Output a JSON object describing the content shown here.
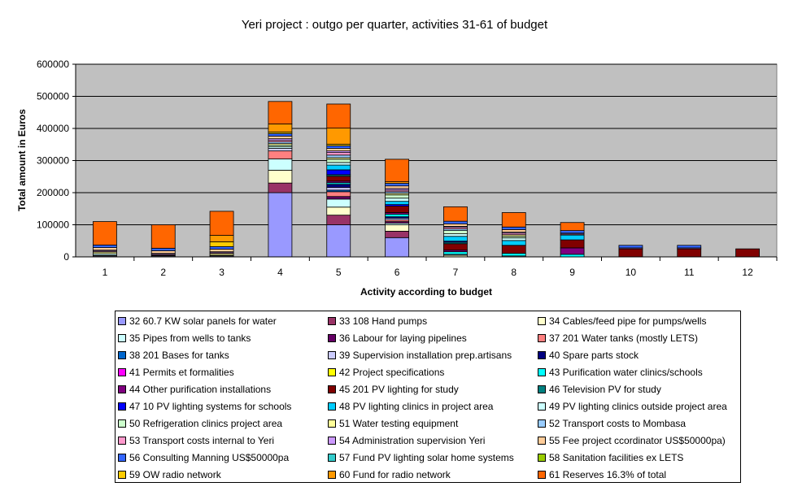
{
  "chart_data": {
    "type": "bar",
    "stacked": true,
    "title": "Yeri project : outgo per quarter, activities 31-61 of budget",
    "xlabel": "Activity according to budget",
    "ylabel": "Total amount in Euros",
    "ylim": [
      0,
      600000
    ],
    "yticks": [
      "0",
      "100000",
      "200000",
      "300000",
      "400000",
      "500000",
      "600000"
    ],
    "categories": [
      "1",
      "2",
      "3",
      "4",
      "5",
      "6",
      "7",
      "8",
      "9",
      "10",
      "11",
      "12"
    ],
    "grid": true,
    "legend_position": "bottom",
    "plot_background": "#c0c0c0",
    "series": [
      {
        "name": "32 60.7 KW solar panels for water",
        "color": "#9999ff",
        "values": [
          0,
          0,
          0,
          200000,
          100000,
          60000,
          0,
          0,
          0,
          0,
          0,
          0
        ]
      },
      {
        "name": "33 108 Hand pumps",
        "color": "#993366",
        "values": [
          0,
          0,
          0,
          30000,
          30000,
          20000,
          0,
          0,
          0,
          0,
          0,
          0
        ]
      },
      {
        "name": "34 Cables/feed pipe for pumps/wells",
        "color": "#ffffcc",
        "values": [
          0,
          0,
          0,
          40000,
          25000,
          20000,
          5000,
          0,
          0,
          0,
          0,
          0
        ]
      },
      {
        "name": "35 Pipes from wells to tanks",
        "color": "#ccffff",
        "values": [
          0,
          0,
          0,
          35000,
          25000,
          5000,
          0,
          0,
          0,
          0,
          0,
          0
        ]
      },
      {
        "name": "36 Labour for laying pipelines",
        "color": "#660066",
        "values": [
          0,
          0,
          0,
          0,
          8000,
          5000,
          0,
          0,
          0,
          0,
          0,
          0
        ]
      },
      {
        "name": "37 201 Water tanks (mostly LETS)",
        "color": "#ff8080",
        "values": [
          0,
          0,
          0,
          25000,
          15000,
          5000,
          0,
          0,
          0,
          0,
          0,
          0
        ]
      },
      {
        "name": "38 201 Bases for tanks",
        "color": "#0066cc",
        "values": [
          0,
          0,
          0,
          0,
          5000,
          0,
          0,
          0,
          0,
          0,
          0,
          0
        ]
      },
      {
        "name": "39 Supervision installation prep.artisans",
        "color": "#ccccff",
        "values": [
          3000,
          3000,
          3000,
          8000,
          8000,
          5000,
          3000,
          3000,
          0,
          0,
          0,
          0
        ]
      },
      {
        "name": "40 Spare parts stock",
        "color": "#000080",
        "values": [
          0,
          0,
          0,
          0,
          10000,
          5000,
          0,
          0,
          0,
          0,
          0,
          0
        ]
      },
      {
        "name": "41 Permits et formalities",
        "color": "#ff00ff",
        "values": [
          0,
          0,
          0,
          0,
          0,
          0,
          0,
          0,
          0,
          0,
          0,
          0
        ]
      },
      {
        "name": "42 Project specifications",
        "color": "#ffff00",
        "values": [
          2000,
          2000,
          2000,
          0,
          0,
          0,
          0,
          0,
          0,
          0,
          0,
          0
        ]
      },
      {
        "name": "43 Purification water clinics/schools",
        "color": "#00ffff",
        "values": [
          0,
          0,
          0,
          0,
          5000,
          8000,
          8000,
          8000,
          8000,
          0,
          0,
          0
        ]
      },
      {
        "name": "44 Other purification installations",
        "color": "#800080",
        "values": [
          0,
          0,
          0,
          0,
          5000,
          5000,
          5000,
          0,
          20000,
          0,
          0,
          0
        ]
      },
      {
        "name": "45 201 PV lighting for study",
        "color": "#800000",
        "values": [
          0,
          0,
          0,
          0,
          15000,
          20000,
          20000,
          25000,
          25000,
          25000,
          25000,
          25000
        ]
      },
      {
        "name": "46 Television PV for study",
        "color": "#008080",
        "values": [
          0,
          0,
          0,
          0,
          5000,
          0,
          5000,
          0,
          0,
          0,
          0,
          0
        ]
      },
      {
        "name": "47 10 PV lighting systems for schools",
        "color": "#0000ff",
        "values": [
          0,
          0,
          0,
          0,
          15000,
          5000,
          3000,
          0,
          0,
          0,
          0,
          0
        ]
      },
      {
        "name": "48 PV lighting clinics in project area",
        "color": "#00ccff",
        "values": [
          0,
          0,
          0,
          0,
          15000,
          10000,
          15000,
          15000,
          15000,
          0,
          0,
          0
        ]
      },
      {
        "name": "49 PV lighting clinics outside project area",
        "color": "#ccffff",
        "values": [
          5000,
          0,
          0,
          5000,
          8000,
          10000,
          8000,
          8000,
          0,
          0,
          0,
          0
        ]
      },
      {
        "name": "50 Refrigeration clinics project area",
        "color": "#ccffcc",
        "values": [
          0,
          0,
          0,
          5000,
          10000,
          10000,
          10000,
          5000,
          0,
          0,
          0,
          0
        ]
      },
      {
        "name": "51 Water testing equipment",
        "color": "#ffff99",
        "values": [
          5000,
          0,
          5000,
          5000,
          5000,
          5000,
          0,
          5000,
          0,
          0,
          0,
          0
        ]
      },
      {
        "name": "52 Transport costs to Mombasa",
        "color": "#99ccff",
        "values": [
          0,
          0,
          0,
          5000,
          8000,
          5000,
          5000,
          0,
          0,
          0,
          0,
          0
        ]
      },
      {
        "name": "53 Transport costs internal to Yeri",
        "color": "#ff99cc",
        "values": [
          3000,
          3000,
          3000,
          5000,
          8000,
          5000,
          5000,
          5000,
          3000,
          0,
          0,
          0
        ]
      },
      {
        "name": "54 Administration supervision Yeri",
        "color": "#cc99ff",
        "values": [
          3000,
          3000,
          3000,
          5000,
          5000,
          5000,
          3000,
          3000,
          3000,
          3000,
          3000,
          0
        ]
      },
      {
        "name": "55 Fee project ccordinator US$50000pa)",
        "color": "#ffcc99",
        "values": [
          8000,
          8000,
          8000,
          8000,
          8000,
          8000,
          8000,
          8000,
          0,
          0,
          0,
          0
        ]
      },
      {
        "name": "56 Consulting Manning US$50000pa",
        "color": "#3366ff",
        "values": [
          8000,
          8000,
          8000,
          8000,
          8000,
          8000,
          8000,
          8000,
          8000,
          8000,
          8000,
          0
        ]
      },
      {
        "name": "57 Fund PV lighting solar home systems",
        "color": "#33cccc",
        "values": [
          0,
          0,
          0,
          0,
          0,
          0,
          0,
          0,
          0,
          0,
          0,
          0
        ]
      },
      {
        "name": "58 Sanitation facilities ex LETS",
        "color": "#99cc00",
        "values": [
          0,
          0,
          0,
          0,
          0,
          0,
          0,
          0,
          0,
          0,
          0,
          0
        ]
      },
      {
        "name": "59 OW radio network",
        "color": "#ffcc00",
        "values": [
          0,
          0,
          15000,
          5000,
          5000,
          0,
          0,
          0,
          0,
          0,
          0,
          0
        ]
      },
      {
        "name": "60 Fund for radio network",
        "color": "#ff9900",
        "values": [
          0,
          0,
          20000,
          25000,
          50000,
          5000,
          0,
          0,
          0,
          0,
          0,
          0
        ]
      },
      {
        "name": "61 Reserves 16.3% of total",
        "color": "#ff6600",
        "values": [
          73000,
          73000,
          75000,
          70000,
          75000,
          70000,
          45000,
          45000,
          25000,
          0,
          0,
          0
        ]
      }
    ]
  }
}
